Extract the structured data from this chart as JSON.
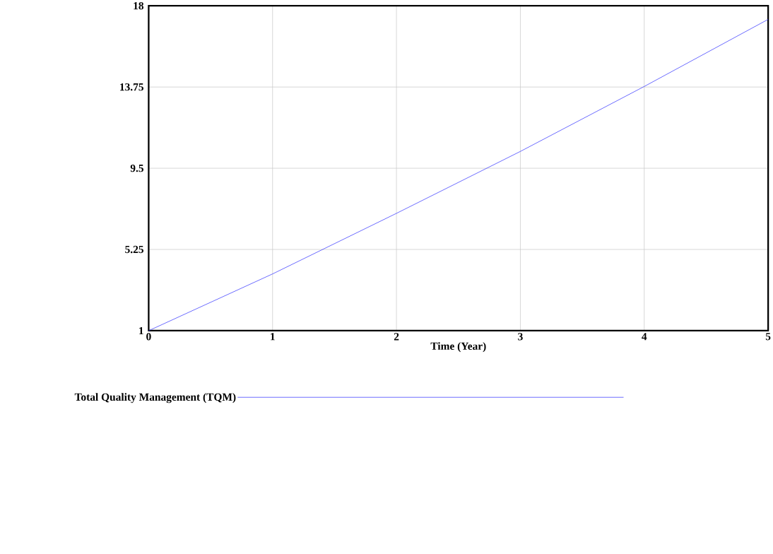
{
  "chart_data": {
    "type": "line",
    "xlabel": "Time (Year)",
    "x": [
      0,
      1,
      2,
      3,
      4,
      5
    ],
    "series": [
      {
        "name": "Total Quality Management (TQM)",
        "color": "#3333ff",
        "values": [
          1,
          3.97,
          7.14,
          10.38,
          13.78,
          17.29
        ]
      }
    ],
    "xlim": [
      0,
      5
    ],
    "ylim": [
      1,
      18
    ],
    "xticks": [
      0,
      1,
      2,
      3,
      4,
      5
    ],
    "yticks": [
      1,
      5.25,
      9.5,
      13.75,
      18
    ],
    "grid": true,
    "legend": "bottom",
    "marker": "none",
    "line_style": "solid"
  }
}
